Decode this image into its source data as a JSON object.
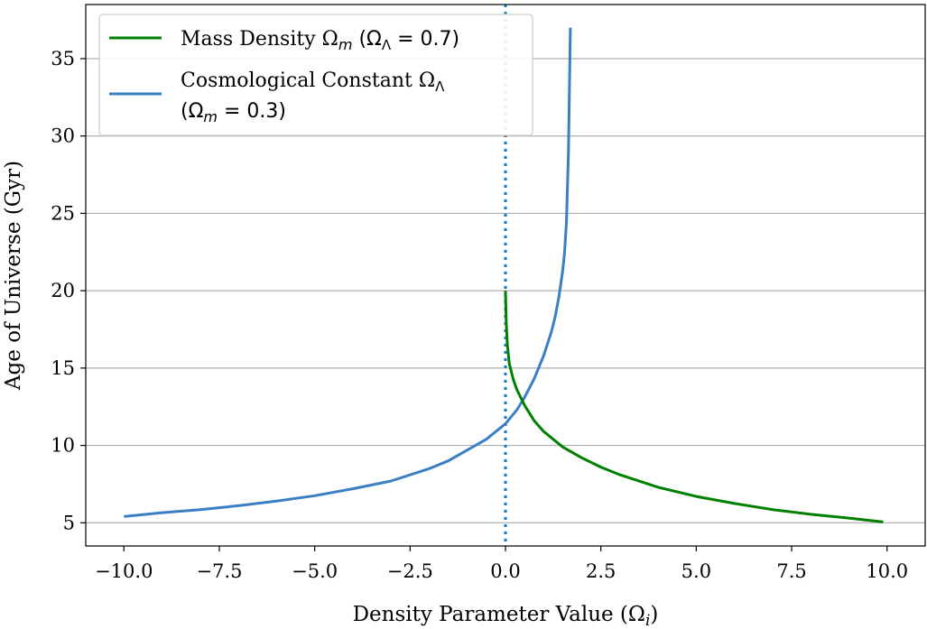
{
  "chart_data": {
    "type": "line",
    "title": "",
    "xlabel": "Density Parameter Value (Ω",
    "xlabel_sub": "i",
    "xlabel_close": ")",
    "ylabel": "Age of Universe (Gyr)",
    "xlim": [
      -11.0,
      11.0
    ],
    "ylim": [
      3.5,
      38.5
    ],
    "xticks": [
      -10.0,
      -7.5,
      -5.0,
      -2.5,
      0.0,
      2.5,
      5.0,
      7.5,
      10.0
    ],
    "xtick_labels": [
      "−10.0",
      "−7.5",
      "−5.0",
      "−2.5",
      "0.0",
      "2.5",
      "5.0",
      "7.5",
      "10.0"
    ],
    "yticks": [
      5,
      10,
      15,
      20,
      25,
      30,
      35
    ],
    "ytick_labels": [
      "5",
      "10",
      "15",
      "20",
      "25",
      "30",
      "35"
    ],
    "grid": "horizontal",
    "legend_position": "top-left",
    "vline": {
      "x": 0.0,
      "style": "dotted",
      "color": "#1f77b4"
    },
    "series": [
      {
        "color": "#008000",
        "legend": {
          "main": "Mass Density Ω",
          "sub": "m",
          "rest": " (Ω",
          "rest_sub": "Λ",
          "rest_end": " = 0.7)"
        },
        "x": [
          0.0,
          0.02,
          0.05,
          0.1,
          0.2,
          0.3,
          0.5,
          0.75,
          1.0,
          1.5,
          2.0,
          2.5,
          3.0,
          4.0,
          5.0,
          6.0,
          7.0,
          8.0,
          9.0,
          9.9
        ],
        "y": [
          20.0,
          18.0,
          16.5,
          15.3,
          14.3,
          13.6,
          12.6,
          11.6,
          10.9,
          9.9,
          9.2,
          8.6,
          8.1,
          7.3,
          6.7,
          6.25,
          5.85,
          5.55,
          5.3,
          5.05
        ]
      },
      {
        "color": "#3a7fc4",
        "legend": {
          "main": "Cosmological Constant Ω",
          "sub": "Λ",
          "line2_open": " (Ω",
          "line2_sub": "m",
          "line2_end": " = 0.3)"
        },
        "x": [
          -10.0,
          -9.0,
          -8.0,
          -7.0,
          -6.0,
          -5.0,
          -4.0,
          -3.0,
          -2.0,
          -1.5,
          -1.0,
          -0.5,
          0.0,
          0.3,
          0.5,
          0.75,
          1.0,
          1.2,
          1.3,
          1.4,
          1.5,
          1.55,
          1.6,
          1.65,
          1.7
        ],
        "y": [
          5.4,
          5.65,
          5.85,
          6.1,
          6.4,
          6.75,
          7.2,
          7.7,
          8.5,
          9.0,
          9.7,
          10.4,
          11.4,
          12.3,
          13.1,
          14.3,
          15.8,
          17.3,
          18.3,
          19.6,
          21.3,
          22.5,
          24.5,
          29.0,
          37.0
        ]
      }
    ]
  }
}
